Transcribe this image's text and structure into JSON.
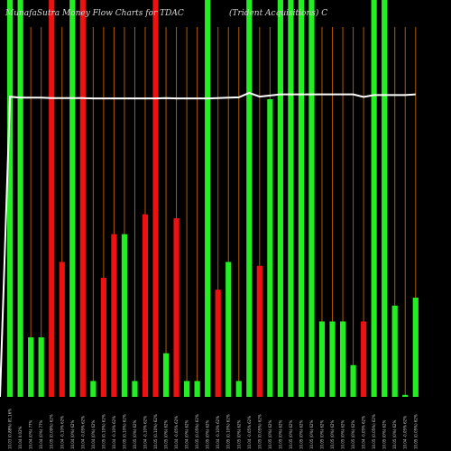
{
  "chart_data": {
    "type": "bar",
    "title_left": "MunafaSutra  Money Flow  Charts for TDAC",
    "title_right": "(Trident Acquisitions) C",
    "colors": {
      "background": "#000000",
      "up": "#22ee22",
      "down": "#ee1111",
      "guide": "#b35900",
      "line": "#ffffff"
    },
    "categories": [
      "10.03 (0.88%) 81.16%",
      "10.04 0.02%",
      "10.04 (0%) 77%",
      "10.04 (0%) 77%",
      "10.05 (0.09%) 62%",
      "10.04 -0.10% 62%",
      "10.04 (0%) 62%",
      "10.04 -0.05% 62%",
      "10.04 (0%) 62%",
      "10.05 (0.10%) 62%",
      "10.04 -0.10% 62%",
      "10.05 (0.10%) 62%",
      "10.05 (0%) 62%",
      "10.04 -0.10% 62%",
      "10.05 (0.10%) 62%",
      "10.05 (0%) 62%",
      "10.04 -0.05% 62%",
      "10.04 (0%) 62%",
      "10.05 (0.05%) 62%",
      "10.05 (0%) 62%",
      "10.04 -0.10% 62%",
      "10.05 (0.10%) 62%",
      "10.05 (0%) 62%",
      "10.04 -0.05% 62%",
      "10.05 (0.05%) 62%",
      "10.05 (0%) 62%",
      "10.05 (0%) 62%",
      "10.05 (0%) 62%",
      "10.05 (0%) 62%",
      "10.05 (0%) 62%",
      "10.05 (0%) 62%",
      "10.05 (0%) 62%",
      "10.05 (0%) 62%",
      "10.05 (0%) 62%",
      "10.04 -0.05% 62%",
      "10.05 (0.05%) 62%",
      "10.05 (0%) 62%",
      "10.05 (0%) 62%",
      "10.04 -0.05% 62%",
      "10.05 (0.05%) 62%"
    ],
    "bars": [
      {
        "dir": "up",
        "value": 100
      },
      {
        "dir": "up",
        "value": 100
      },
      {
        "dir": "up",
        "value": 15
      },
      {
        "dir": "up",
        "value": 15
      },
      {
        "dir": "down",
        "value": 100
      },
      {
        "dir": "down",
        "value": 34
      },
      {
        "dir": "up",
        "value": 100
      },
      {
        "dir": "down",
        "value": 100
      },
      {
        "dir": "up",
        "value": 4
      },
      {
        "dir": "down",
        "value": 30
      },
      {
        "dir": "down",
        "value": 41
      },
      {
        "dir": "up",
        "value": 41
      },
      {
        "dir": "up",
        "value": 4
      },
      {
        "dir": "down",
        "value": 46
      },
      {
        "dir": "down",
        "value": 100
      },
      {
        "dir": "up",
        "value": 11
      },
      {
        "dir": "down",
        "value": 45
      },
      {
        "dir": "up",
        "value": 4
      },
      {
        "dir": "up",
        "value": 4
      },
      {
        "dir": "up",
        "value": 100
      },
      {
        "dir": "down",
        "value": 27
      },
      {
        "dir": "up",
        "value": 34
      },
      {
        "dir": "up",
        "value": 4
      },
      {
        "dir": "up",
        "value": 100
      },
      {
        "dir": "down",
        "value": 33
      },
      {
        "dir": "up",
        "value": 75
      },
      {
        "dir": "up",
        "value": 100
      },
      {
        "dir": "up",
        "value": 100
      },
      {
        "dir": "up",
        "value": 100
      },
      {
        "dir": "up",
        "value": 100
      },
      {
        "dir": "up",
        "value": 19
      },
      {
        "dir": "up",
        "value": 19
      },
      {
        "dir": "up",
        "value": 19
      },
      {
        "dir": "up",
        "value": 8
      },
      {
        "dir": "down",
        "value": 19
      },
      {
        "dir": "up",
        "value": 100
      },
      {
        "dir": "up",
        "value": 100
      },
      {
        "dir": "up",
        "value": 23
      },
      {
        "dir": "up",
        "value": 0.5
      },
      {
        "dir": "up",
        "value": 25
      }
    ],
    "line": [
      81.16,
      80.9,
      80.9,
      80.9,
      80.8,
      80.8,
      80.8,
      80.8,
      80.7,
      80.7,
      80.7,
      80.7,
      80.7,
      80.7,
      80.7,
      80.8,
      80.7,
      80.7,
      80.7,
      80.7,
      80.8,
      80.9,
      81.0,
      82.2,
      81.2,
      81.5,
      81.8,
      81.8,
      81.8,
      81.8,
      81.8,
      81.8,
      81.8,
      81.8,
      81.1,
      81.6,
      81.6,
      81.6,
      81.6,
      81.8
    ],
    "line_first_point": 0,
    "ylim": [
      0,
      100
    ],
    "line_ylim": [
      0,
      100
    ]
  }
}
